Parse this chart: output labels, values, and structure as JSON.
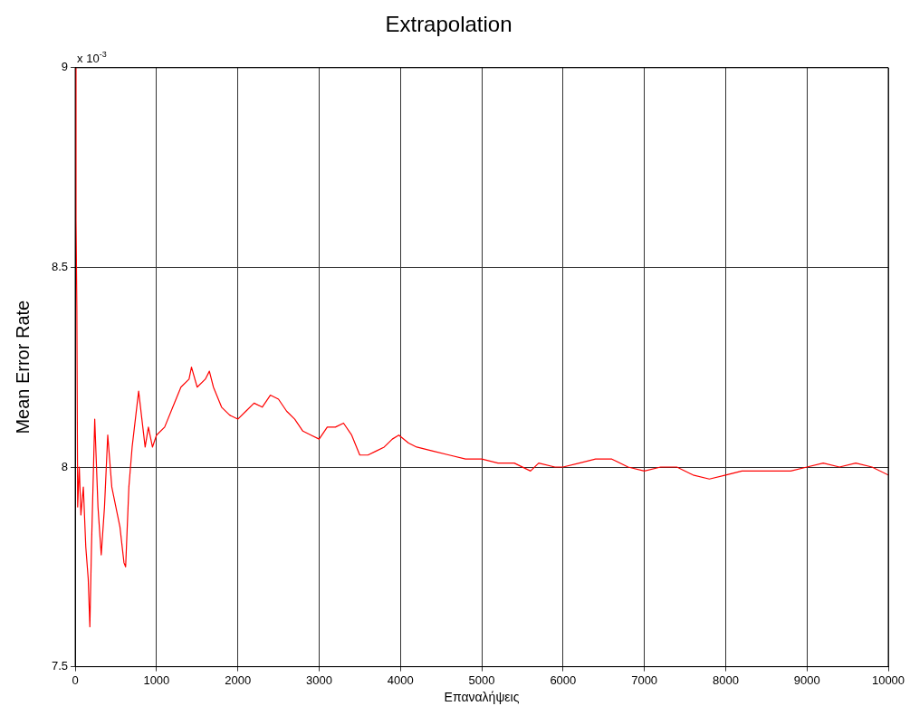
{
  "chart_data": {
    "type": "line",
    "title": "Extrapolation",
    "xlabel": "Επαναλήψεις",
    "ylabel": "Mean Error Rate",
    "annotations": [
      "x 10$^{-3}$"
    ],
    "x": [
      0,
      10,
      20,
      30,
      50,
      70,
      100,
      130,
      160,
      180,
      200,
      240,
      280,
      320,
      360,
      400,
      450,
      500,
      550,
      600,
      620,
      660,
      700,
      780,
      820,
      860,
      900,
      950,
      1000,
      1100,
      1200,
      1300,
      1400,
      1430,
      1500,
      1600,
      1650,
      1700,
      1800,
      1900,
      2000,
      2100,
      2200,
      2300,
      2400,
      2500,
      2600,
      2700,
      2800,
      2900,
      3000,
      3100,
      3200,
      3300,
      3400,
      3500,
      3600,
      3700,
      3800,
      3900,
      3980,
      4100,
      4200,
      4400,
      4600,
      4800,
      5000,
      5200,
      5400,
      5600,
      5700,
      5900,
      6000,
      6200,
      6400,
      6600,
      6800,
      7000,
      7200,
      7400,
      7600,
      7800,
      8000,
      8200,
      8400,
      8600,
      8800,
      9000,
      9200,
      9400,
      9600,
      9800,
      10000
    ],
    "series": [
      {
        "color": "#ff0000",
        "values": [
          9.0,
          8.62,
          8.4,
          7.9,
          8.0,
          7.88,
          7.95,
          7.8,
          7.72,
          7.6,
          7.8,
          8.12,
          7.9,
          7.78,
          7.9,
          8.08,
          7.95,
          7.9,
          7.85,
          7.76,
          7.75,
          7.95,
          8.05,
          8.19,
          8.12,
          8.05,
          8.1,
          8.05,
          8.08,
          8.1,
          8.15,
          8.2,
          8.22,
          8.25,
          8.2,
          8.22,
          8.24,
          8.2,
          8.15,
          8.13,
          8.12,
          8.14,
          8.16,
          8.15,
          8.18,
          8.17,
          8.14,
          8.12,
          8.09,
          8.08,
          8.07,
          8.1,
          8.1,
          8.11,
          8.08,
          8.03,
          8.03,
          8.04,
          8.05,
          8.07,
          8.08,
          8.06,
          8.05,
          8.04,
          8.03,
          8.02,
          8.02,
          8.01,
          8.01,
          7.99,
          8.01,
          8.0,
          8.0,
          8.01,
          8.02,
          8.02,
          8.0,
          7.99,
          8.0,
          8.0,
          7.98,
          7.97,
          7.98,
          7.99,
          7.99,
          7.99,
          7.99,
          8.0,
          8.01,
          8.0,
          8.01,
          8.0,
          7.98
        ]
      }
    ],
    "xlim": [
      0,
      10000
    ],
    "xticks": [
      0,
      1000,
      2000,
      3000,
      4000,
      5000,
      6000,
      7000,
      8000,
      9000,
      10000
    ],
    "ylim": [
      7.5,
      9
    ],
    "yticks": [
      7.5,
      8,
      8.5,
      9
    ],
    "grid": true,
    "legend": false,
    "marker": "none",
    "line_style": "solid"
  }
}
